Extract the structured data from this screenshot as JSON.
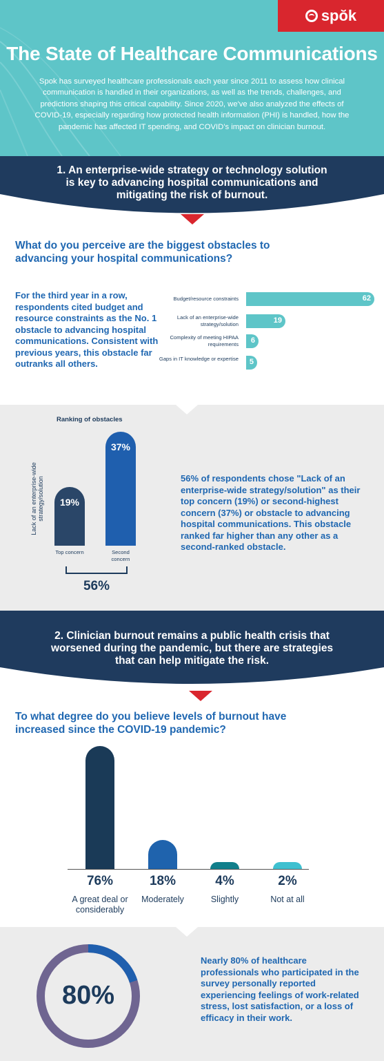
{
  "header": {
    "brand": "spŏk",
    "title": "The State of Healthcare Communications",
    "intro": "Spok has surveyed healthcare professionals each year since 2011 to assess how clinical communication is handled in their organizations, as well as the trends, challenges, and predictions shaping this critical capability. Since 2020, we've also analyzed the effects of COVID-19, especially regarding how protected health information (PHI) is handled, how the pandemic has affected IT spending, and COVID's impact on clinician burnout."
  },
  "section1": {
    "heading": "1. An enterprise-wide strategy or technology solution is key to advancing hospital communications and mitigating the risk of burnout.",
    "question": "What do you perceive are the biggest obstacles to advancing your hospital communications?",
    "summary": "For the third year in a row, respondents cited budget and resource constraints as the No. 1 obstacle to advancing hospital communications. Consistent with previous years, this obstacle far outranks all others."
  },
  "ranking": {
    "title": "Ranking of obstacles",
    "axis_label": "Lack of an enterprise-wide strategy/solution",
    "top_label": "Top concern",
    "second_label": "Second concern",
    "total": "56%",
    "top_value": "19%",
    "second_value": "37%",
    "top_pct": 19,
    "second_pct": 37,
    "note": "56% of respondents chose \"Lack of an enterprise-wide strategy/solution\" as their top concern (19%) or second-highest concern (37%) or obstacle to advancing hospital communications. This obstacle ranked far higher than any other as a second-ranked obstacle."
  },
  "section2": {
    "heading": "2. Clinician burnout remains a public health crisis that worsened during the pandemic, but there are strategies that can help mitigate the risk.",
    "question": "To what degree do you believe levels of burnout have increased since the COVID-19 pandemic?"
  },
  "stress": {
    "value": "80%",
    "pct": 80,
    "text": "Nearly 80% of healthcare professionals who participated in the survey personally reported experiencing feelings of work-related stress, lost satisfaction, or a loss of efficacy in their work."
  },
  "colors": {
    "teal": "#5ec5c8",
    "navy": "#1f3b5e",
    "blue": "#1f67b1",
    "red": "#d9262e",
    "purple": "#6f6591"
  },
  "chart_data": [
    {
      "type": "bar",
      "orientation": "horizontal",
      "categories": [
        "Budget/resource constraints",
        "Lack of an enterprise-wide strategy/solution",
        "Complexity of meeting HIPAA requirements",
        "Gaps in IT knowledge or expertise"
      ],
      "values": [
        62,
        19,
        6,
        5
      ],
      "value_labels": [
        "62",
        "19",
        "6",
        "5"
      ]
    },
    {
      "type": "bar",
      "categories": [
        "A great deal or considerably",
        "Moderately",
        "Slightly",
        "Not at all"
      ],
      "values": [
        76,
        18,
        4,
        2
      ],
      "value_labels": [
        "76%",
        "18%",
        "4%",
        "2%"
      ],
      "colors": [
        "#1a3a57",
        "#1f63ad",
        "#117f8b",
        "#3fc0d0"
      ]
    }
  ]
}
